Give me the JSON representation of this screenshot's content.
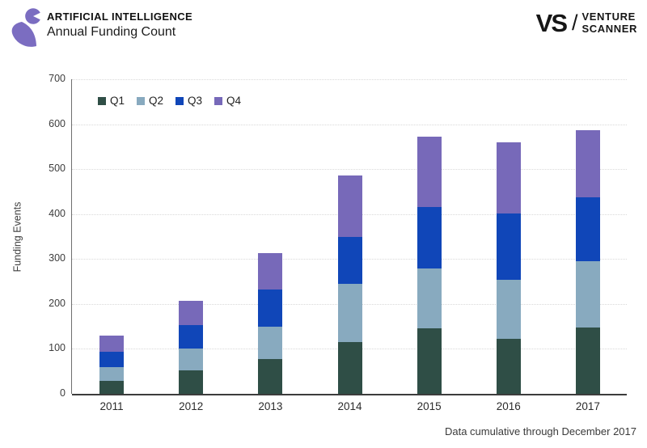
{
  "header": {
    "category": "ARTIFICIAL INTELLIGENCE",
    "subtitle": "Annual Funding Count",
    "logo_color": "#7b6dc1"
  },
  "brand": {
    "mark": "VS",
    "slash": "/",
    "line1": "VENTURE",
    "line2": "SCANNER"
  },
  "footer": {
    "note": "Data cumulative through December 2017"
  },
  "chart_data": {
    "type": "bar",
    "stacked": true,
    "title": "Artificial Intelligence — Annual Funding Count",
    "ylabel": "Funding Events",
    "xlabel": "",
    "categories": [
      "2011",
      "2012",
      "2013",
      "2014",
      "2015",
      "2016",
      "2017"
    ],
    "series": [
      {
        "name": "Q1",
        "color": "#2f4e46",
        "values": [
          28,
          52,
          77,
          116,
          145,
          122,
          148
        ]
      },
      {
        "name": "Q2",
        "color": "#88aabf",
        "values": [
          31,
          48,
          73,
          128,
          134,
          131,
          147
        ]
      },
      {
        "name": "Q3",
        "color": "#1046b8",
        "values": [
          34,
          53,
          82,
          106,
          136,
          149,
          143
        ]
      },
      {
        "name": "Q4",
        "color": "#7769b9",
        "values": [
          36,
          54,
          81,
          135,
          157,
          157,
          148
        ]
      }
    ],
    "totals": [
      129,
      207,
      313,
      485,
      572,
      559,
      586
    ],
    "ylim": [
      0,
      700
    ],
    "ytick_interval": 100,
    "yticks": [
      0,
      100,
      200,
      300,
      400,
      500,
      600,
      700
    ],
    "grid": "horizontal-dotted",
    "legend_position": "top-left-inside",
    "axis_color": "#3c3c3c"
  }
}
